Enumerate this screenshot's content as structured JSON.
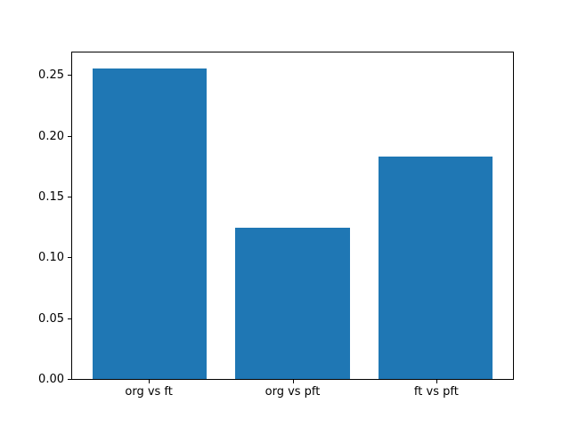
{
  "colors": {
    "background": "#ffffff",
    "bar": "#1f77b4",
    "spine": "#000000",
    "text": "#000000"
  },
  "chart_data": {
    "type": "bar",
    "title": "",
    "xlabel": "",
    "ylabel": "",
    "categories": [
      "org vs ft",
      "org vs pft",
      "ft vs pft"
    ],
    "values": [
      0.257,
      0.125,
      0.184
    ],
    "bar_color": "#1f77b4",
    "ylim": [
      0,
      0.27
    ],
    "yticks": [
      0.0,
      0.05,
      0.1,
      0.15,
      0.2,
      0.25
    ],
    "ytick_labels": [
      "0.00",
      "0.05",
      "0.10",
      "0.15",
      "0.20",
      "0.25"
    ],
    "grid": false,
    "legend": null,
    "bar_width_fraction": 0.8,
    "x_margin": 0.54
  }
}
